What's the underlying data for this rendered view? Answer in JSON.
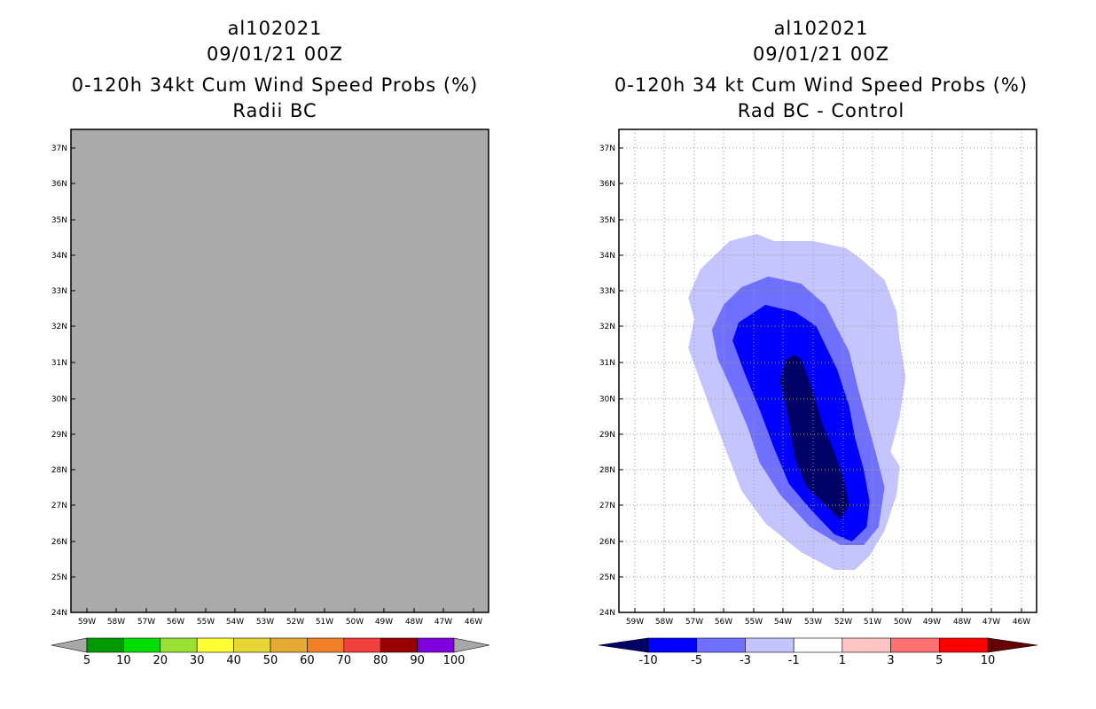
{
  "left_panel": {
    "title_line1": "al102021",
    "title_line2": "09/01/21 00Z",
    "title_line3": "0-120h 34kt Cum Wind Speed Probs (%)",
    "title_line4": "Radii BC",
    "plot_fill": "#aaaaaa"
  },
  "right_panel": {
    "title_line1": "al102021",
    "title_line2": "09/01/21 00Z",
    "title_line3": "0-120h 34 kt Cum Wind Speed Probs (%)",
    "title_line4": "Rad BC - Control"
  },
  "chart_data": [
    {
      "type": "heatmap",
      "title": "0-120h 34kt Cum Wind Speed Probs (%)",
      "subtitle": "Radii BC",
      "storm": "al102021",
      "datetime": "09/01/21 00Z",
      "x_ticks": [
        "59W",
        "58W",
        "57W",
        "56W",
        "55W",
        "54W",
        "53W",
        "52W",
        "51W",
        "50W",
        "49W",
        "48W",
        "47W",
        "46W"
      ],
      "y_ticks": [
        "24N",
        "25N",
        "26N",
        "27N",
        "28N",
        "29N",
        "30N",
        "31N",
        "32N",
        "33N",
        "34N",
        "35N",
        "36N",
        "37N"
      ],
      "xlim": [
        -59.6,
        -45.6
      ],
      "ylim": [
        24,
        37.4
      ],
      "grid": false,
      "colorbar": {
        "levels": [
          "5",
          "10",
          "20",
          "30",
          "40",
          "50",
          "60",
          "70",
          "80",
          "90",
          "100"
        ],
        "colors": [
          "#009900",
          "#00dd00",
          "#99e033",
          "#ffff33",
          "#e5d633",
          "#e5aa33",
          "#f08028",
          "#f04040",
          "#990000",
          "#7d00dd"
        ],
        "under_color": "#a8a8a8",
        "over_color": "#a8a8a8"
      }
    },
    {
      "type": "heatmap",
      "title": "0-120h 34 kt Cum Wind Speed Probs (%)",
      "subtitle": "Rad BC - Control",
      "storm": "al102021",
      "datetime": "09/01/21 00Z",
      "x_ticks": [
        "59W",
        "58W",
        "57W",
        "56W",
        "55W",
        "54W",
        "53W",
        "52W",
        "51W",
        "50W",
        "49W",
        "48W",
        "47W",
        "46W"
      ],
      "y_ticks": [
        "24N",
        "25N",
        "26N",
        "27N",
        "28N",
        "29N",
        "30N",
        "31N",
        "32N",
        "33N",
        "34N",
        "35N",
        "36N",
        "37N"
      ],
      "xlim": [
        -59.6,
        -45.6
      ],
      "ylim": [
        24,
        37.4
      ],
      "grid": true,
      "contours": [
        {
          "level": "-1 to -3",
          "color": "#c4c4ff",
          "points": [
            [
              -54.9,
              34.6
            ],
            [
              -54.3,
              34.4
            ],
            [
              -53.0,
              34.4
            ],
            [
              -51.9,
              34.2
            ],
            [
              -51.4,
              33.9
            ],
            [
              -50.6,
              33.3
            ],
            [
              -50.2,
              32.4
            ],
            [
              -50.1,
              31.6
            ],
            [
              -49.9,
              30.6
            ],
            [
              -50.1,
              29.5
            ],
            [
              -50.4,
              28.5
            ],
            [
              -50.1,
              28.1
            ],
            [
              -50.2,
              27.3
            ],
            [
              -50.6,
              26.3
            ],
            [
              -51.1,
              25.6
            ],
            [
              -51.6,
              25.2
            ],
            [
              -52.3,
              25.2
            ],
            [
              -53.4,
              25.7
            ],
            [
              -54.6,
              26.5
            ],
            [
              -55.4,
              27.4
            ],
            [
              -55.9,
              28.5
            ],
            [
              -56.4,
              29.6
            ],
            [
              -56.8,
              30.5
            ],
            [
              -57.2,
              31.4
            ],
            [
              -57.0,
              32.2
            ],
            [
              -57.2,
              32.8
            ],
            [
              -56.8,
              33.6
            ],
            [
              -55.8,
              34.4
            ]
          ]
        },
        {
          "level": "-3 to -5",
          "color": "#7070ff",
          "points": [
            [
              -54.5,
              33.4
            ],
            [
              -53.4,
              33.2
            ],
            [
              -52.6,
              32.6
            ],
            [
              -51.8,
              31.3
            ],
            [
              -51.5,
              30.3
            ],
            [
              -51.2,
              29.4
            ],
            [
              -50.9,
              28.5
            ],
            [
              -50.6,
              27.5
            ],
            [
              -50.8,
              26.4
            ],
            [
              -51.3,
              25.9
            ],
            [
              -52.1,
              25.9
            ],
            [
              -53.1,
              26.4
            ],
            [
              -54.1,
              27.3
            ],
            [
              -54.8,
              28.2
            ],
            [
              -55.2,
              29.2
            ],
            [
              -55.7,
              30.2
            ],
            [
              -56.2,
              31.1
            ],
            [
              -56.4,
              31.9
            ],
            [
              -56.0,
              32.6
            ],
            [
              -55.4,
              33.1
            ]
          ]
        },
        {
          "level": "-5 to -10",
          "color": "#0000ff",
          "points": [
            [
              -54.6,
              32.6
            ],
            [
              -53.6,
              32.4
            ],
            [
              -52.9,
              32.0
            ],
            [
              -52.2,
              30.8
            ],
            [
              -51.8,
              29.8
            ],
            [
              -51.6,
              28.9
            ],
            [
              -51.3,
              28.0
            ],
            [
              -51.1,
              27.1
            ],
            [
              -51.2,
              26.4
            ],
            [
              -51.7,
              26.0
            ],
            [
              -52.3,
              26.2
            ],
            [
              -53.1,
              26.9
            ],
            [
              -53.8,
              27.6
            ],
            [
              -54.3,
              28.6
            ],
            [
              -54.8,
              29.7
            ],
            [
              -55.3,
              30.7
            ],
            [
              -55.7,
              31.6
            ],
            [
              -55.5,
              32.1
            ]
          ]
        },
        {
          "level": "< -10",
          "color": "#000066",
          "points": [
            [
              -53.6,
              31.2
            ],
            [
              -53.4,
              31.1
            ],
            [
              -53.0,
              30.2
            ],
            [
              -52.7,
              29.3
            ],
            [
              -52.3,
              28.5
            ],
            [
              -52.0,
              27.8
            ],
            [
              -51.8,
              27.0
            ],
            [
              -52.1,
              26.6
            ],
            [
              -52.7,
              27.1
            ],
            [
              -53.2,
              27.5
            ],
            [
              -53.6,
              28.3
            ],
            [
              -53.8,
              29.4
            ],
            [
              -54.1,
              30.5
            ],
            [
              -53.9,
              31.1
            ]
          ]
        }
      ],
      "colorbar": {
        "levels": [
          "-10",
          "-5",
          "-3",
          "-1",
          "1",
          "3",
          "5",
          "10"
        ],
        "colors": [
          "#0000ff",
          "#7070ff",
          "#c4c4ff",
          "#ffffff",
          "#ffc4c4",
          "#ff7070",
          "#ff0000"
        ],
        "under_color": "#000066",
        "over_color": "#660000"
      }
    }
  ]
}
